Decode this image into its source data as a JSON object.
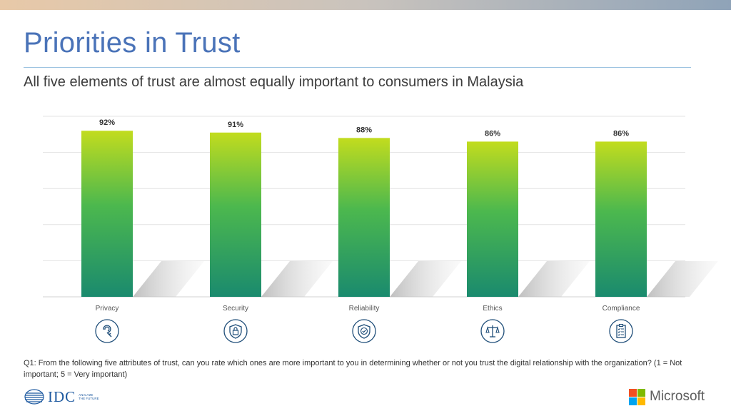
{
  "slide": {
    "title": "Priorities in Trust",
    "subtitle": "All five elements of trust are almost equally important to consumers in Malaysia",
    "footnote": "Q1: From the following five attributes of trust, can you rate which ones are more important to you in determining whether or not you trust the digital relationship with the organization? (1 = Not important; 5 = Very important)",
    "idc_logo_text": "IDC",
    "idc_tagline": "ANALYZE THE FUTURE",
    "microsoft_logo_text": "Microsoft"
  },
  "chart_data": {
    "type": "bar",
    "categories": [
      "Privacy",
      "Security",
      "Reliability",
      "Ethics",
      "Compliance"
    ],
    "values": [
      92,
      91,
      88,
      86,
      86
    ],
    "value_labels": [
      "92%",
      "91%",
      "88%",
      "86%",
      "86%"
    ],
    "category_icons": [
      "fingerprint-key-icon",
      "shield-lock-icon",
      "shield-check-icon",
      "scales-icon",
      "checklist-clipboard-icon"
    ],
    "unit": "%",
    "ylim": [
      0,
      100
    ],
    "grid": true,
    "legend": "none",
    "colors": {
      "bar_top": "#c2dc1e",
      "bar_mid": "#4cb84e",
      "bar_bottom": "#1a8a6e",
      "gridline": "#e3e3e3",
      "icon": "#1f4e79"
    }
  }
}
